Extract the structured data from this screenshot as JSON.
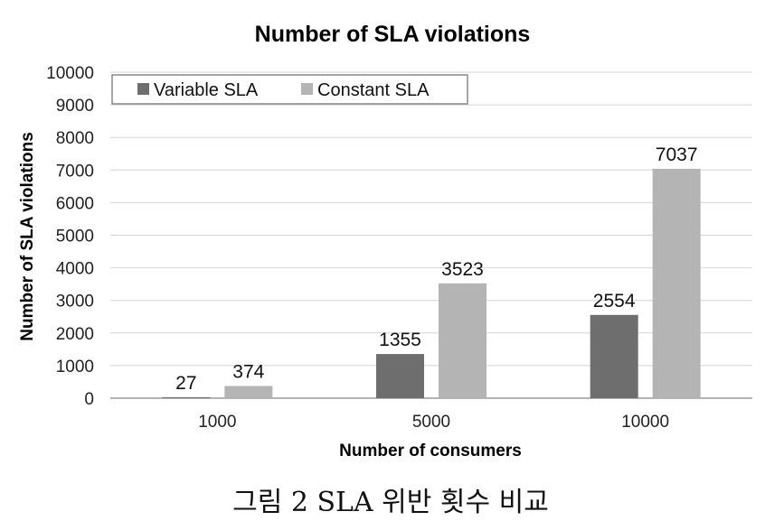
{
  "chart_data": {
    "type": "bar",
    "title": "Number of SLA violations",
    "xlabel": "Number of consumers",
    "ylabel": "Number of SLA violations",
    "categories": [
      "1000",
      "5000",
      "10000"
    ],
    "series": [
      {
        "name": "Variable SLA",
        "values": [
          27,
          1355,
          2554
        ],
        "color": "#6e6e6e"
      },
      {
        "name": "Constant SLA",
        "values": [
          374,
          3523,
          7037
        ],
        "color": "#b4b4b4"
      }
    ],
    "ylim": [
      0,
      10000
    ],
    "yticks": [
      0,
      1000,
      2000,
      3000,
      4000,
      5000,
      6000,
      7000,
      8000,
      9000,
      10000
    ],
    "grid": true,
    "legend_position": "top-left"
  },
  "caption": "그림 2 SLA 위반 횟수 비교"
}
